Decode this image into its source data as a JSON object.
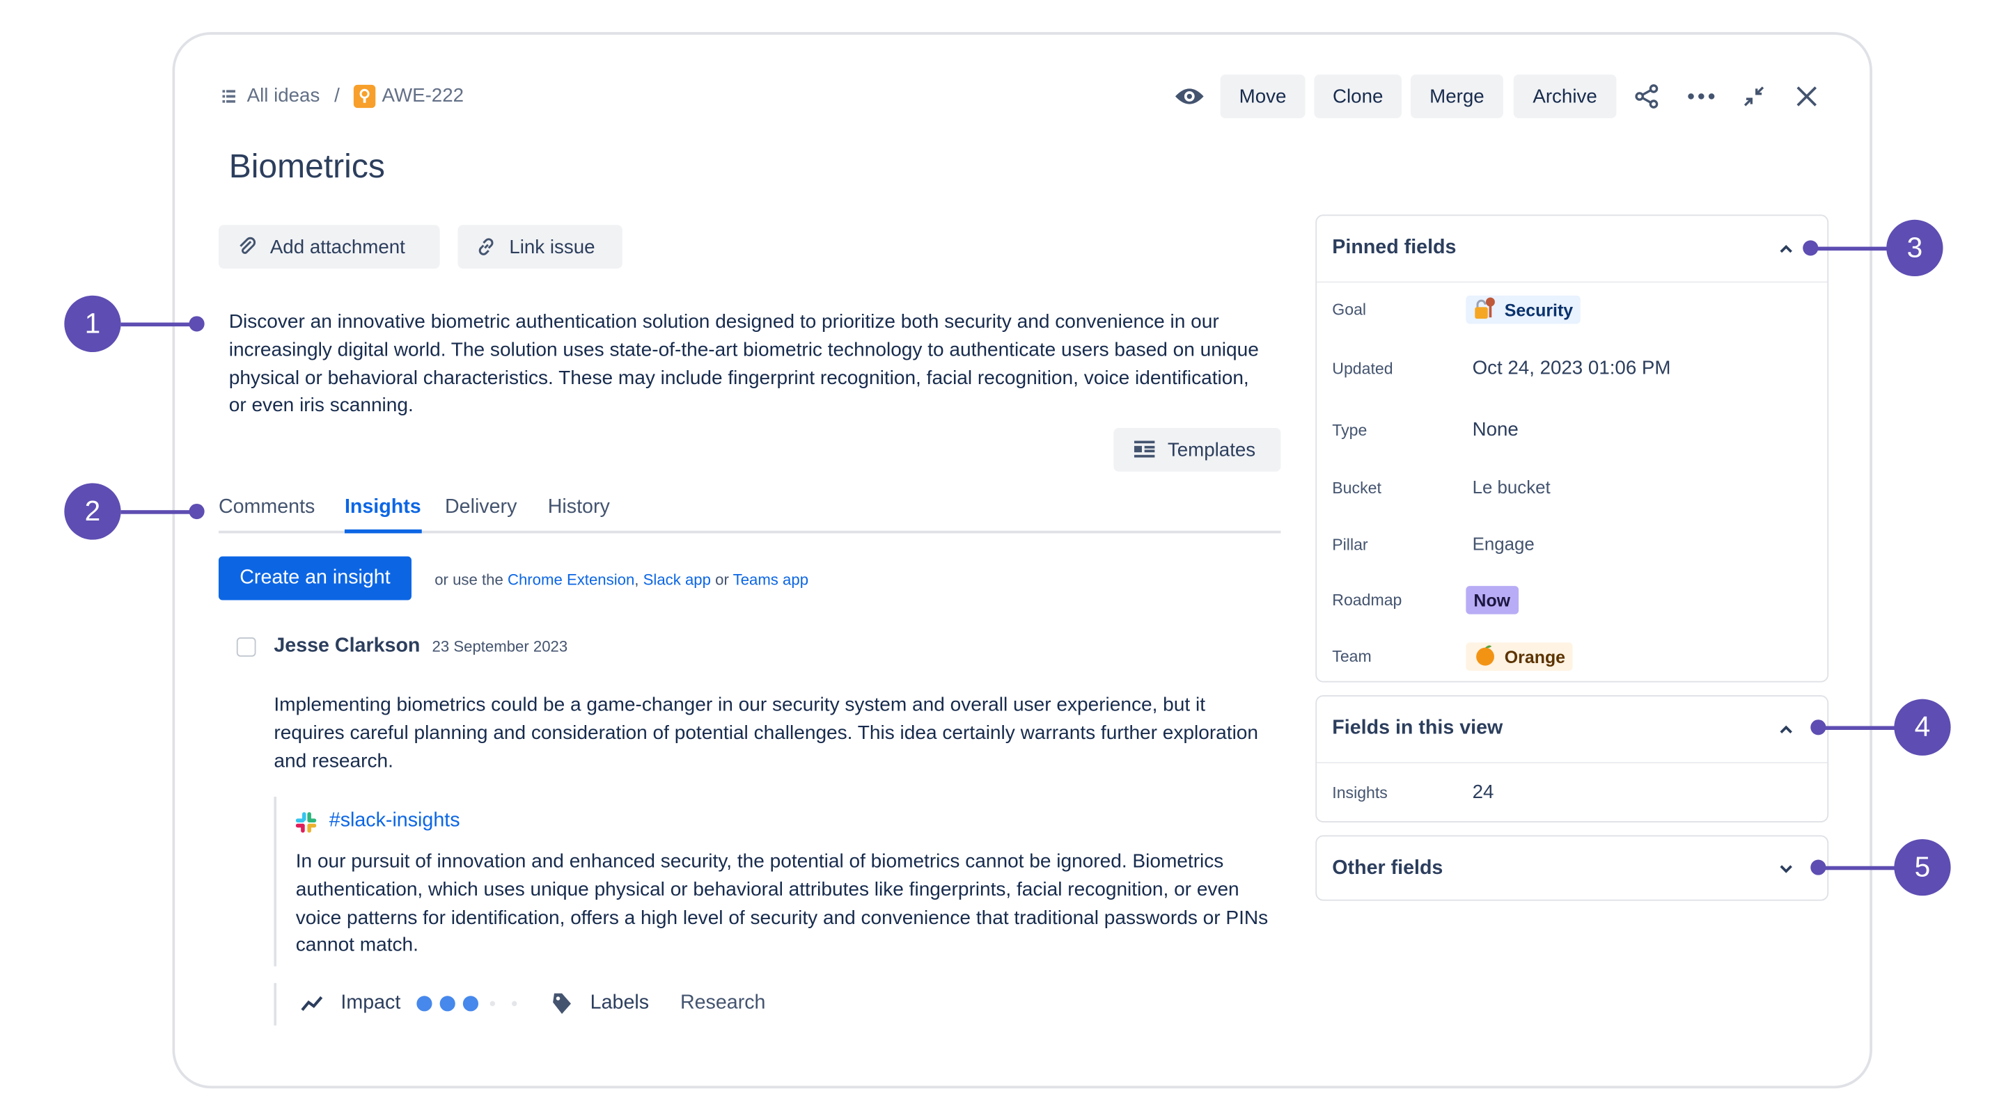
{
  "breadcrumb": {
    "parent": "All ideas",
    "separator": "/",
    "issue_key": "AWE-222"
  },
  "toolbar": {
    "move": "Move",
    "clone": "Clone",
    "merge": "Merge",
    "archive": "Archive"
  },
  "title": "Biometrics",
  "actions": {
    "add_attachment": "Add attachment",
    "link_issue": "Link issue",
    "templates": "Templates"
  },
  "description": "Discover an innovative biometric authentication solution designed to prioritize both security and convenience in our increasingly digital world. The solution uses state-of-the-art biometric technology to authenticate users based on unique physical or behavioral characteristics. These may include fingerprint recognition, facial recognition, voice identification, or even iris scanning.",
  "tabs": [
    {
      "label": "Comments"
    },
    {
      "label": "Insights",
      "active": true
    },
    {
      "label": "Delivery"
    },
    {
      "label": "History"
    }
  ],
  "insights": {
    "create_label": "Create an insight",
    "or_use": "or use the",
    "chrome": "Chrome Extension",
    "comma": ",",
    "slack": "Slack app",
    "or": "or",
    "teams": "Teams app",
    "items": [
      {
        "author": "Jesse Clarkson",
        "date": "23 September 2023",
        "text": "Implementing biometrics could be a game-changer in our security system and overall user experience, but it requires careful planning and consideration of potential challenges. This idea certainly warrants further exploration and research.",
        "source_channel": "#slack-insights",
        "quote": "In our pursuit of innovation and enhanced security, the potential of biometrics cannot be ignored. Biometrics authentication, which uses unique physical or behavioral attributes like fingerprints, facial recognition, or even voice patterns for identification, offers a high level of security and convenience that traditional passwords or PINs cannot match.",
        "impact_label": "Impact",
        "impact_level": 3,
        "impact_max": 5,
        "labels_label": "Labels",
        "label_value": "Research"
      }
    ]
  },
  "pinned_fields": {
    "title": "Pinned fields",
    "rows": [
      {
        "label": "Goal",
        "value": "Security"
      },
      {
        "label": "Updated",
        "value": "Oct 24, 2023 01:06 PM"
      },
      {
        "label": "Type",
        "value": "None"
      },
      {
        "label": "Bucket",
        "value": "Le bucket"
      },
      {
        "label": "Pillar",
        "value": "Engage"
      },
      {
        "label": "Roadmap",
        "value": "Now"
      },
      {
        "label": "Team",
        "value": "Orange"
      }
    ]
  },
  "fields_in_view": {
    "title": "Fields in this view",
    "rows": [
      {
        "label": "Insights",
        "value": "24"
      }
    ]
  },
  "other_fields": {
    "title": "Other fields"
  },
  "annotations": [
    "1",
    "2",
    "3",
    "4",
    "5"
  ],
  "colors": {
    "accent": "#0c66e4",
    "annotation": "#5e4db2",
    "idea_icon": "#f79f2a",
    "roadmap_now_bg": "#b8acf6",
    "goal_tag_bg": "#e9f2ff",
    "team_tag_bg": "#fff3e3"
  }
}
